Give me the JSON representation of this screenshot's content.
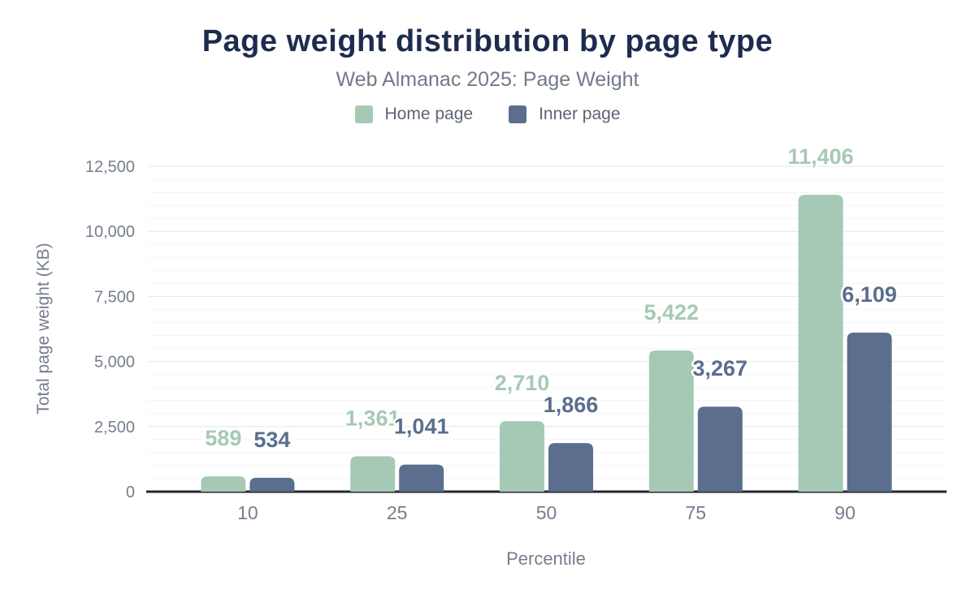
{
  "header": {
    "title": "Page weight distribution by page type",
    "subtitle": "Web Almanac 2025: Page Weight"
  },
  "colors": {
    "title": "#1d2c4e",
    "subtitle": "#727a89",
    "axis_text": "#767d8c",
    "baseline": "#23262d",
    "grid_major": "#e6e7ea",
    "grid_minor": "#f3f4f6",
    "home_page": "#a6c9b5",
    "inner_page": "#5b6e8e"
  },
  "chart_data": {
    "type": "bar",
    "title": "Page weight distribution by page type",
    "subtitle": "Web Almanac 2025: Page Weight",
    "categories": [
      "10",
      "25",
      "50",
      "75",
      "90"
    ],
    "series": [
      {
        "name": "Home page",
        "color": "#a6c9b5",
        "values": [
          589,
          1361,
          2710,
          5422,
          11406
        ]
      },
      {
        "name": "Inner page",
        "color": "#5b6e8e",
        "values": [
          534,
          1041,
          1866,
          3267,
          6109
        ]
      }
    ],
    "value_labels": [
      [
        "589",
        "1,361",
        "2,710",
        "5,422",
        "11,406"
      ],
      [
        "534",
        "1,041",
        "1,866",
        "3,267",
        "6,109"
      ]
    ],
    "xlabel": "Percentile",
    "ylabel": "Total page weight (KB)",
    "ylim": [
      0,
      12500
    ],
    "yticks": [
      0,
      2500,
      5000,
      7500,
      10000,
      12500
    ],
    "ytick_labels": [
      "0",
      "2,500",
      "5,000",
      "7,500",
      "10,000",
      "12,500"
    ],
    "minor_grid_step": 500,
    "grid": true,
    "legend_position": "top"
  }
}
